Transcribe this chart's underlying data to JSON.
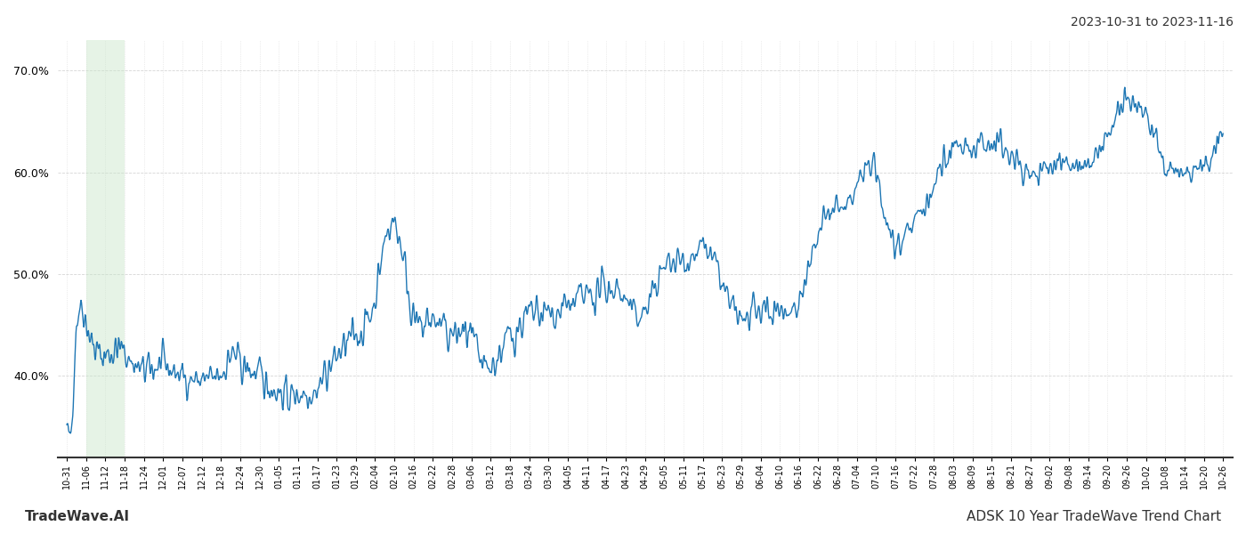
{
  "title_top_right": "2023-10-31 to 2023-11-16",
  "footer_left": "TradeWave.AI",
  "footer_right": "ADSK 10 Year TradeWave Trend Chart",
  "line_color": "#1f77b4",
  "line_width": 1.0,
  "shade_color": "#c8e6c9",
  "shade_alpha": 0.45,
  "bg_color": "#ffffff",
  "grid_color": "#cccccc",
  "ylim": [
    32,
    73
  ],
  "yticks": [
    40,
    50,
    60,
    70
  ],
  "x_labels": [
    "10-31",
    "11-06",
    "11-12",
    "11-18",
    "11-24",
    "12-01",
    "12-07",
    "12-12",
    "12-18",
    "12-24",
    "12-30",
    "01-05",
    "01-11",
    "01-17",
    "01-23",
    "01-29",
    "02-04",
    "02-10",
    "02-16",
    "02-22",
    "02-28",
    "03-06",
    "03-12",
    "03-18",
    "03-24",
    "03-30",
    "04-05",
    "04-11",
    "04-17",
    "04-23",
    "04-29",
    "05-05",
    "05-11",
    "05-17",
    "05-23",
    "05-29",
    "06-04",
    "06-10",
    "06-16",
    "06-22",
    "06-28",
    "07-04",
    "07-10",
    "07-16",
    "07-22",
    "07-28",
    "08-03",
    "08-09",
    "08-15",
    "08-21",
    "08-27",
    "09-02",
    "09-08",
    "09-14",
    "09-20",
    "09-26",
    "10-02",
    "10-08",
    "10-14",
    "10-20",
    "10-26"
  ],
  "shade_x_start": "11-06",
  "shade_x_end": "11-18",
  "num_points": 2520
}
